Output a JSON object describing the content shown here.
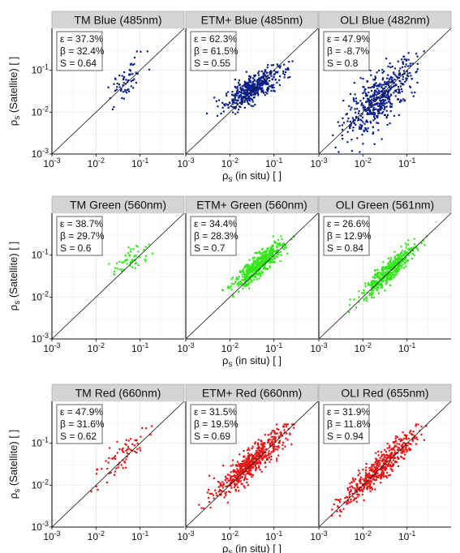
{
  "figure": {
    "xlabel_main": "ρ",
    "xlabel_sub": "s",
    "xlabel_rest": " (in situ) [ ]",
    "ylabel_main": "ρ",
    "ylabel_sub": "s",
    "ylabel_rest": " (Satellite) [ ]"
  },
  "colors": {
    "blue": "#0b1f8a",
    "green": "#33e61a",
    "red": "#e81414",
    "strip": "#d4d4d4",
    "grid": "#e2e2e2"
  },
  "chart_data": [
    {
      "type": "scatter",
      "title": "TM Blue (485nm)",
      "color": "blue",
      "xscale": "log",
      "yscale": "log",
      "xlim": [
        0.001,
        1
      ],
      "ylim": [
        0.001,
        1
      ],
      "tick_base": "10",
      "tick_exponents": [
        "-3",
        "-2",
        "-1"
      ],
      "stats": [
        "ε = 37.3%",
        "β = 32.4%",
        "S = 0.64"
      ],
      "cloud": {
        "n": 60,
        "x_center": 0.05,
        "x_spread": 0.55,
        "slope": 1.0,
        "y_offset": 0.02,
        "noise": 0.2
      }
    },
    {
      "type": "scatter",
      "title": "ETM+ Blue (485nm)",
      "color": "blue",
      "xscale": "log",
      "yscale": "log",
      "xlim": [
        0.001,
        1
      ],
      "ylim": [
        0.001,
        1
      ],
      "tick_base": "10",
      "tick_exponents": [
        "-3",
        "-2",
        "-1"
      ],
      "stats": [
        "ε = 62.3%",
        "β = 61.5%",
        "S = 0.55"
      ],
      "cloud": {
        "n": 450,
        "x_center": 0.032,
        "x_spread": 0.75,
        "slope": 0.55,
        "y_offset": 0.05,
        "noise": 0.16
      }
    },
    {
      "type": "scatter",
      "title": "OLI Blue (482nm)",
      "color": "blue",
      "xscale": "log",
      "yscale": "log",
      "xlim": [
        0.001,
        1
      ],
      "ylim": [
        0.001,
        1
      ],
      "tick_base": "10",
      "tick_exponents": [
        "-3",
        "-2",
        "-1"
      ],
      "stats": [
        "ε = 47.9%",
        "β = -8.7%",
        "S = 0.8"
      ],
      "cloud": {
        "n": 500,
        "x_center": 0.025,
        "x_spread": 0.95,
        "slope": 0.85,
        "y_offset": -0.05,
        "noise": 0.3
      }
    },
    {
      "type": "scatter",
      "title": "TM Green (560nm)",
      "color": "green",
      "xscale": "log",
      "yscale": "log",
      "xlim": [
        0.001,
        1
      ],
      "ylim": [
        0.001,
        1
      ],
      "tick_base": "10",
      "tick_exponents": [
        "-3",
        "-2",
        "-1"
      ],
      "stats": [
        "ε = 38.7%",
        "β = 29.7%",
        "S = 0.6"
      ],
      "cloud": {
        "n": 55,
        "x_center": 0.06,
        "x_spread": 0.55,
        "slope": 0.7,
        "y_offset": 0.08,
        "noise": 0.17
      }
    },
    {
      "type": "scatter",
      "title": "ETM+ Green (560nm)",
      "color": "green",
      "xscale": "log",
      "yscale": "log",
      "xlim": [
        0.001,
        1
      ],
      "ylim": [
        0.001,
        1
      ],
      "tick_base": "10",
      "tick_exponents": [
        "-3",
        "-2",
        "-1"
      ],
      "stats": [
        "ε = 34.4%",
        "β = 28.3%",
        "S = 0.7"
      ],
      "cloud": {
        "n": 500,
        "x_center": 0.045,
        "x_spread": 0.65,
        "slope": 0.85,
        "y_offset": 0.1,
        "noise": 0.13
      }
    },
    {
      "type": "scatter",
      "title": "OLI Green (561nm)",
      "color": "green",
      "xscale": "log",
      "yscale": "log",
      "xlim": [
        0.001,
        1
      ],
      "ylim": [
        0.001,
        1
      ],
      "tick_base": "10",
      "tick_exponents": [
        "-3",
        "-2",
        "-1"
      ],
      "stats": [
        "ε = 26.6%",
        "β = 12.9%",
        "S = 0.84"
      ],
      "cloud": {
        "n": 450,
        "x_center": 0.04,
        "x_spread": 0.7,
        "slope": 0.95,
        "y_offset": 0.03,
        "noise": 0.13
      }
    },
    {
      "type": "scatter",
      "title": "TM Red (660nm)",
      "color": "red",
      "xscale": "log",
      "yscale": "log",
      "xlim": [
        0.001,
        1
      ],
      "ylim": [
        0.001,
        1
      ],
      "tick_base": "10",
      "tick_exponents": [
        "-3",
        "-2",
        "-1"
      ],
      "stats": [
        "ε = 47.9%",
        "β = 31.6%",
        "S = 0.62"
      ],
      "cloud": {
        "n": 70,
        "x_center": 0.035,
        "x_spread": 0.85,
        "slope": 0.9,
        "y_offset": 0.1,
        "noise": 0.2
      }
    },
    {
      "type": "scatter",
      "title": "ETM+ Red (660nm)",
      "color": "red",
      "xscale": "log",
      "yscale": "log",
      "xlim": [
        0.001,
        1
      ],
      "ylim": [
        0.001,
        1
      ],
      "tick_base": "10",
      "tick_exponents": [
        "-3",
        "-2",
        "-1"
      ],
      "stats": [
        "ε = 31.5%",
        "β = 19.5%",
        "S = 0.69"
      ],
      "cloud": {
        "n": 550,
        "x_center": 0.03,
        "x_spread": 0.95,
        "slope": 0.9,
        "y_offset": 0.05,
        "noise": 0.17
      }
    },
    {
      "type": "scatter",
      "title": "OLI Red (655nm)",
      "color": "red",
      "xscale": "log",
      "yscale": "log",
      "xlim": [
        0.001,
        1
      ],
      "ylim": [
        0.001,
        1
      ],
      "tick_base": "10",
      "tick_exponents": [
        "-3",
        "-2",
        "-1"
      ],
      "stats": [
        "ε = 31.9%",
        "β = 11.8%",
        "S = 0.94"
      ],
      "cloud": {
        "n": 500,
        "x_center": 0.025,
        "x_spread": 1.0,
        "slope": 0.95,
        "y_offset": 0.03,
        "noise": 0.17
      }
    }
  ]
}
